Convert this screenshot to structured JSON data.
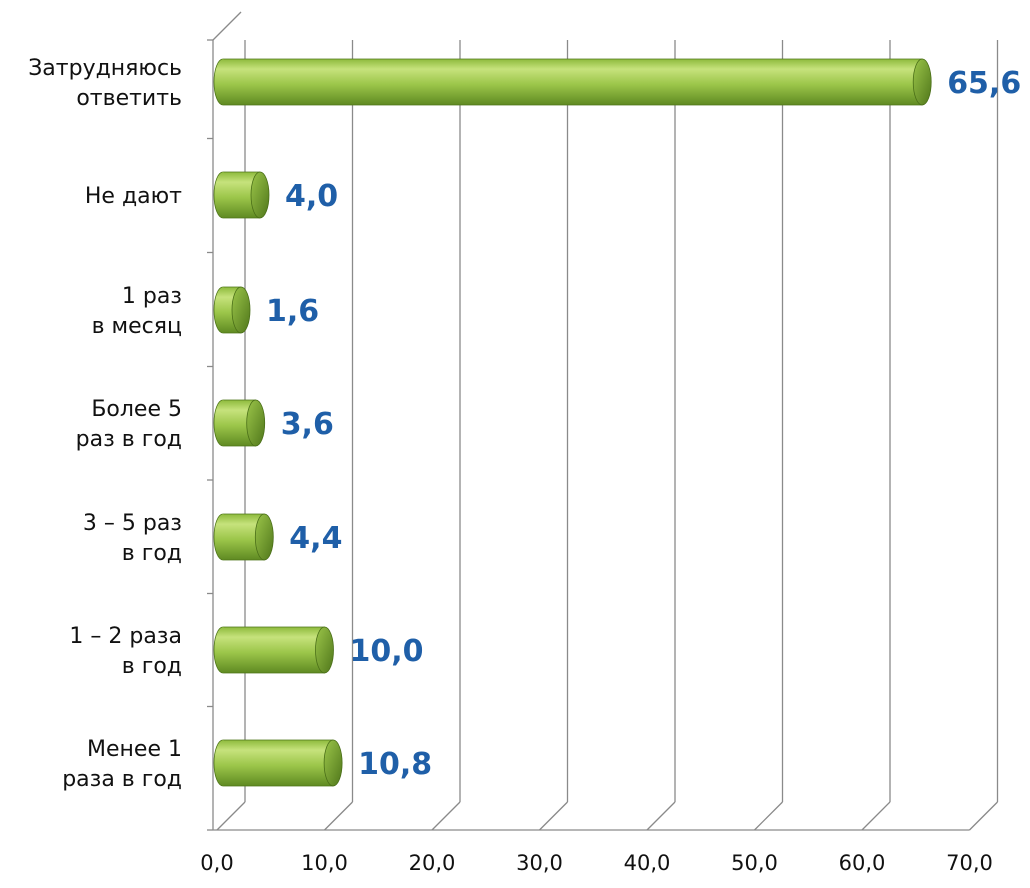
{
  "chart_data": {
    "type": "bar",
    "orientation": "horizontal",
    "style": "3d-cylinder",
    "categories": [
      [
        "Затрудняюсь",
        "ответить"
      ],
      [
        "Не дают"
      ],
      [
        "1 раз",
        "в месяц"
      ],
      [
        "Более 5",
        "раз в год"
      ],
      [
        "3 – 5 раз",
        "в год"
      ],
      [
        "1 – 2 раза",
        "в год"
      ],
      [
        "Менее 1",
        "раза в год"
      ]
    ],
    "values": [
      65.6,
      4.0,
      1.6,
      3.6,
      4.4,
      10.0,
      10.8
    ],
    "value_labels": [
      "65,6",
      "4,0",
      "1,6",
      "3,6",
      "4,4",
      "10,0",
      "10,8"
    ],
    "xlim": [
      0,
      70
    ],
    "x_ticks": [
      "0,0",
      "10,0",
      "20,0",
      "30,0",
      "40,0",
      "50,0",
      "60,0",
      "70,0"
    ],
    "grid": true,
    "legend": "none",
    "colors": {
      "bar_light": "#b8d96a",
      "bar_mid": "#8dba3c",
      "bar_dark": "#5a8420",
      "bar_cap": "#6e9a2a",
      "value_label": "#1f5fa8",
      "gridline": "#8a8a8a"
    }
  }
}
